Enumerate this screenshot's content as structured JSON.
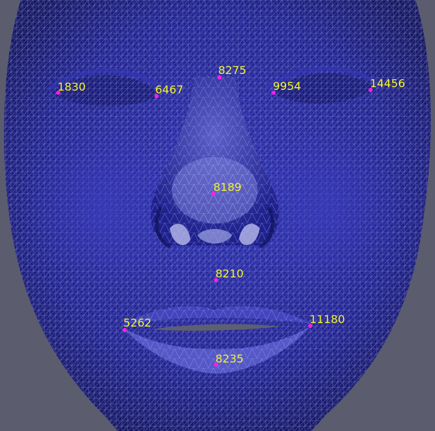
{
  "colors": {
    "background": "#5b5d6e",
    "mesh_fill": "#22249a",
    "mesh_line": "#8e90d6",
    "landmark_dot": "#ff1ee8",
    "landmark_label": "#f2f52a"
  },
  "landmarks": [
    {
      "id": "1830",
      "label": "1830"
    },
    {
      "id": "6467",
      "label": "6467"
    },
    {
      "id": "8275",
      "label": "8275"
    },
    {
      "id": "9954",
      "label": "9954"
    },
    {
      "id": "14456",
      "label": "14456"
    },
    {
      "id": "8189",
      "label": "8189"
    },
    {
      "id": "8210",
      "label": "8210"
    },
    {
      "id": "5262",
      "label": "5262"
    },
    {
      "id": "11180",
      "label": "11180"
    },
    {
      "id": "8235",
      "label": "8235"
    }
  ]
}
